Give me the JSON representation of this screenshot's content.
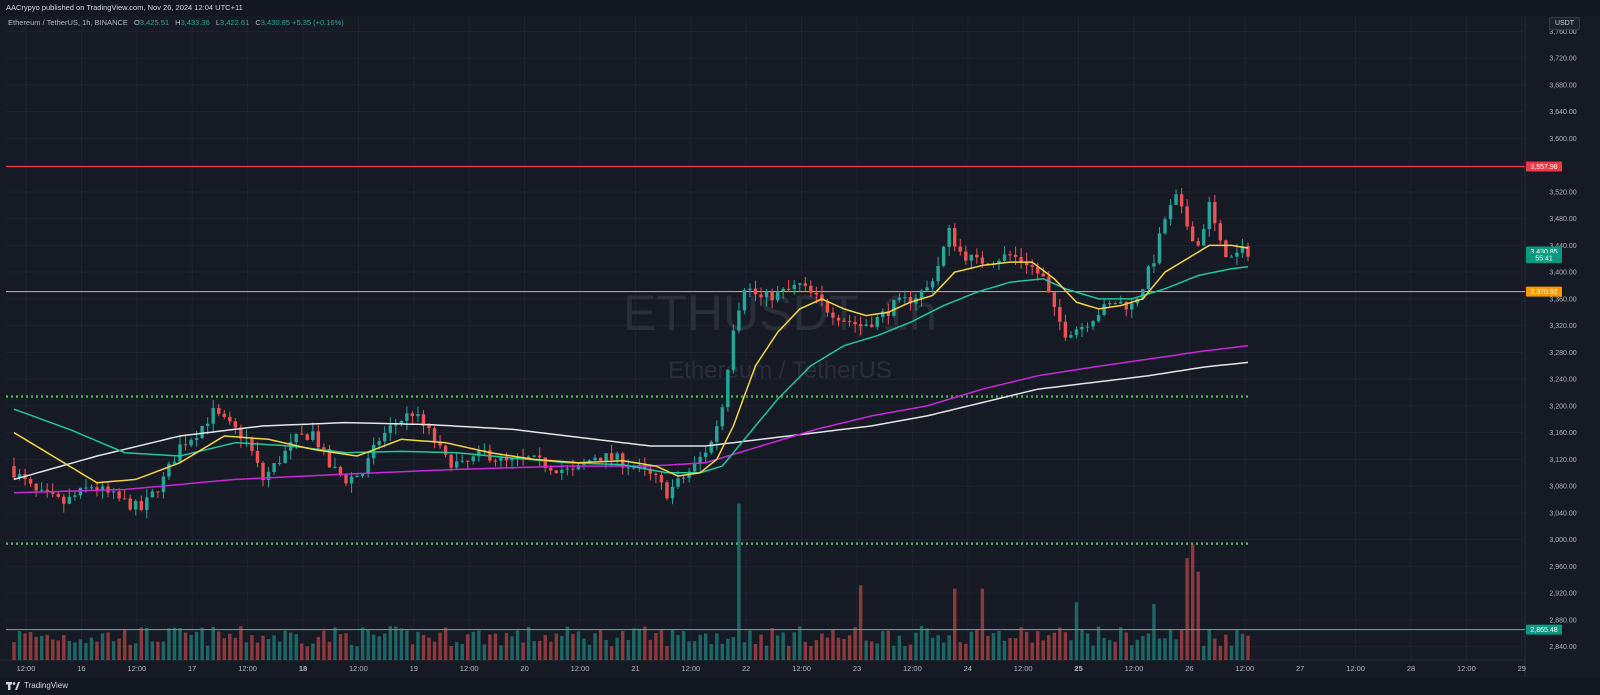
{
  "header": {
    "published_by": "AACrypyo published on TradingView.com, Nov 26, 2024 12:04 UTC+11"
  },
  "legend": {
    "symbol": "Ethereum / TetherUS, 1h, BINANCE",
    "o_label": "O",
    "o_value": "3,425.51",
    "h_label": "H",
    "h_value": "3,433.36",
    "l_label": "L",
    "l_value": "3,422.61",
    "c_label": "C",
    "c_value": "3,430.85",
    "change": "+5.35 (+0.16%)"
  },
  "watermark": {
    "ticker": "ETHUSDT, 1h",
    "name": "Ethereum / TetherUS"
  },
  "currency_badge": "USDT",
  "footer": {
    "brand": "TradingView"
  },
  "colors": {
    "background": "#161a25",
    "up": "#26a69a",
    "down": "#ef5350",
    "resistance": "#f23645",
    "support_orange": "#ff9800",
    "support_green": "#4caf50",
    "ema_fast": "#f5d546",
    "ema_mid": "#22c79a",
    "ema_200": "#c62ad6",
    "ema_slow": "#e6e6e6"
  },
  "chart_data": {
    "type": "candlestick",
    "symbol": "ETHUSDT",
    "interval": "1h",
    "ylim": [
      2820,
      3780
    ],
    "y_ticks": [
      "3,760.00",
      "3,720.00",
      "3,680.00",
      "3,640.00",
      "3,600.00",
      "3,520.00",
      "3,480.00",
      "3,440.00",
      "3,400.00",
      "3,360.00",
      "3,320.00",
      "3,280.00",
      "3,240.00",
      "3,200.00",
      "3,160.00",
      "3,120.00",
      "3,080.00",
      "3,040.00",
      "3,000.00",
      "2,960.00",
      "2,920.00",
      "2,880.00",
      "2,840.00"
    ],
    "x_ticks": [
      "12:00",
      "16",
      "12:00",
      "17",
      "12:00",
      "18",
      "12:00",
      "19",
      "12:00",
      "20",
      "12:00",
      "21",
      "12:00",
      "22",
      "12:00",
      "23",
      "12:00",
      "24",
      "12:00",
      "25",
      "12:00",
      "26",
      "12:00",
      "27",
      "12:00",
      "28",
      "12:00",
      "29"
    ],
    "price_labels": [
      {
        "text": "3,557.98",
        "value": 3557.98,
        "color": "#f23645"
      },
      {
        "text": "3,430.85",
        "value": 3430.85,
        "color": "#089981"
      },
      {
        "text": "55:41",
        "value": 3421,
        "color": "#089981"
      },
      {
        "text": "3,370.92",
        "value": 3370.92,
        "color": "#ff9800"
      },
      {
        "text": "2,865.48",
        "value": 2865.48,
        "color": "#089981"
      }
    ],
    "levels": [
      {
        "value": 3557.98,
        "style": "solid",
        "color": "#f23645"
      },
      {
        "value": 3370.92,
        "style": "solid",
        "color": "#ff9800"
      },
      {
        "value": 3214,
        "style": "dotted",
        "color": "#4caf50"
      },
      {
        "value": 2994,
        "style": "dotted",
        "color": "#4caf50"
      },
      {
        "value": 2865.48,
        "style": "solid",
        "color": "#4caf50"
      }
    ],
    "price_path": [
      [
        0,
        3110
      ],
      [
        5,
        3070
      ],
      [
        10,
        3055
      ],
      [
        15,
        3080
      ],
      [
        20,
        3060
      ],
      [
        24,
        3045
      ],
      [
        28,
        3090
      ],
      [
        31,
        3140
      ],
      [
        34,
        3160
      ],
      [
        37,
        3190
      ],
      [
        40,
        3170
      ],
      [
        43,
        3150
      ],
      [
        46,
        3090
      ],
      [
        49,
        3120
      ],
      [
        52,
        3150
      ],
      [
        55,
        3160
      ],
      [
        58,
        3110
      ],
      [
        61,
        3090
      ],
      [
        64,
        3100
      ],
      [
        67,
        3150
      ],
      [
        70,
        3175
      ],
      [
        73,
        3190
      ],
      [
        76,
        3160
      ],
      [
        79,
        3120
      ],
      [
        82,
        3110
      ],
      [
        86,
        3130
      ],
      [
        90,
        3115
      ],
      [
        94,
        3120
      ],
      [
        98,
        3110
      ],
      [
        102,
        3100
      ],
      [
        106,
        3125
      ],
      [
        110,
        3120
      ],
      [
        114,
        3105
      ],
      [
        117,
        3090
      ],
      [
        119,
        3070
      ],
      [
        121,
        3085
      ],
      [
        124,
        3110
      ],
      [
        127,
        3145
      ],
      [
        129,
        3200
      ],
      [
        131,
        3320
      ],
      [
        133,
        3380
      ],
      [
        136,
        3360
      ],
      [
        140,
        3370
      ],
      [
        143,
        3380
      ],
      [
        146,
        3360
      ],
      [
        148,
        3345
      ],
      [
        151,
        3330
      ],
      [
        154,
        3320
      ],
      [
        157,
        3330
      ],
      [
        160,
        3350
      ],
      [
        163,
        3360
      ],
      [
        166,
        3375
      ],
      [
        168,
        3410
      ],
      [
        170,
        3460
      ],
      [
        172,
        3430
      ],
      [
        175,
        3415
      ],
      [
        178,
        3420
      ],
      [
        181,
        3425
      ],
      [
        184,
        3415
      ],
      [
        187,
        3390
      ],
      [
        189,
        3340
      ],
      [
        191,
        3310
      ],
      [
        194,
        3320
      ],
      [
        197,
        3340
      ],
      [
        200,
        3355
      ],
      [
        203,
        3350
      ],
      [
        205,
        3380
      ],
      [
        207,
        3420
      ],
      [
        209,
        3480
      ],
      [
        211,
        3510
      ],
      [
        213,
        3470
      ],
      [
        215,
        3440
      ],
      [
        217,
        3500
      ],
      [
        219,
        3440
      ],
      [
        221,
        3420
      ],
      [
        223,
        3431
      ]
    ],
    "ema_fast": [
      [
        0,
        3160
      ],
      [
        8,
        3120
      ],
      [
        15,
        3085
      ],
      [
        22,
        3090
      ],
      [
        30,
        3115
      ],
      [
        38,
        3155
      ],
      [
        46,
        3150
      ],
      [
        54,
        3135
      ],
      [
        62,
        3125
      ],
      [
        70,
        3150
      ],
      [
        78,
        3145
      ],
      [
        86,
        3130
      ],
      [
        94,
        3120
      ],
      [
        102,
        3115
      ],
      [
        110,
        3118
      ],
      [
        116,
        3110
      ],
      [
        120,
        3095
      ],
      [
        124,
        3100
      ],
      [
        127,
        3120
      ],
      [
        130,
        3170
      ],
      [
        134,
        3260
      ],
      [
        138,
        3310
      ],
      [
        142,
        3345
      ],
      [
        146,
        3360
      ],
      [
        150,
        3345
      ],
      [
        154,
        3335
      ],
      [
        158,
        3340
      ],
      [
        162,
        3355
      ],
      [
        166,
        3365
      ],
      [
        170,
        3400
      ],
      [
        175,
        3410
      ],
      [
        180,
        3415
      ],
      [
        184,
        3415
      ],
      [
        188,
        3390
      ],
      [
        192,
        3355
      ],
      [
        196,
        3345
      ],
      [
        200,
        3350
      ],
      [
        204,
        3360
      ],
      [
        208,
        3400
      ],
      [
        212,
        3420
      ],
      [
        216,
        3440
      ],
      [
        220,
        3440
      ],
      [
        223,
        3436
      ]
    ],
    "ema_mid": [
      [
        0,
        3195
      ],
      [
        10,
        3165
      ],
      [
        20,
        3130
      ],
      [
        30,
        3125
      ],
      [
        40,
        3145
      ],
      [
        50,
        3140
      ],
      [
        60,
        3130
      ],
      [
        70,
        3132
      ],
      [
        80,
        3130
      ],
      [
        90,
        3122
      ],
      [
        100,
        3115
      ],
      [
        110,
        3112
      ],
      [
        118,
        3100
      ],
      [
        124,
        3100
      ],
      [
        128,
        3110
      ],
      [
        132,
        3150
      ],
      [
        138,
        3210
      ],
      [
        144,
        3260
      ],
      [
        150,
        3290
      ],
      [
        156,
        3305
      ],
      [
        162,
        3325
      ],
      [
        168,
        3350
      ],
      [
        174,
        3370
      ],
      [
        180,
        3385
      ],
      [
        186,
        3390
      ],
      [
        190,
        3375
      ],
      [
        196,
        3360
      ],
      [
        202,
        3360
      ],
      [
        208,
        3375
      ],
      [
        214,
        3395
      ],
      [
        220,
        3405
      ],
      [
        223,
        3408
      ]
    ],
    "ema_200": [
      [
        0,
        3070
      ],
      [
        20,
        3075
      ],
      [
        40,
        3090
      ],
      [
        60,
        3098
      ],
      [
        80,
        3105
      ],
      [
        100,
        3110
      ],
      [
        115,
        3110
      ],
      [
        125,
        3115
      ],
      [
        135,
        3140
      ],
      [
        145,
        3165
      ],
      [
        155,
        3185
      ],
      [
        165,
        3200
      ],
      [
        175,
        3225
      ],
      [
        185,
        3245
      ],
      [
        195,
        3258
      ],
      [
        205,
        3270
      ],
      [
        215,
        3282
      ],
      [
        223,
        3290
      ]
    ],
    "ema_slow": [
      [
        0,
        3090
      ],
      [
        15,
        3125
      ],
      [
        30,
        3155
      ],
      [
        45,
        3170
      ],
      [
        60,
        3175
      ],
      [
        75,
        3172
      ],
      [
        90,
        3165
      ],
      [
        105,
        3150
      ],
      [
        115,
        3140
      ],
      [
        125,
        3140
      ],
      [
        135,
        3150
      ],
      [
        145,
        3160
      ],
      [
        155,
        3170
      ],
      [
        165,
        3185
      ],
      [
        175,
        3205
      ],
      [
        185,
        3225
      ],
      [
        195,
        3235
      ],
      [
        205,
        3245
      ],
      [
        215,
        3258
      ],
      [
        223,
        3265
      ]
    ],
    "volume_spikes": [
      [
        131,
        0.92
      ],
      [
        153,
        0.44
      ],
      [
        170,
        0.42
      ],
      [
        175,
        0.42
      ],
      [
        212,
        0.6
      ],
      [
        213,
        0.68
      ],
      [
        214,
        0.52
      ],
      [
        206,
        0.33
      ],
      [
        192,
        0.34
      ]
    ]
  }
}
